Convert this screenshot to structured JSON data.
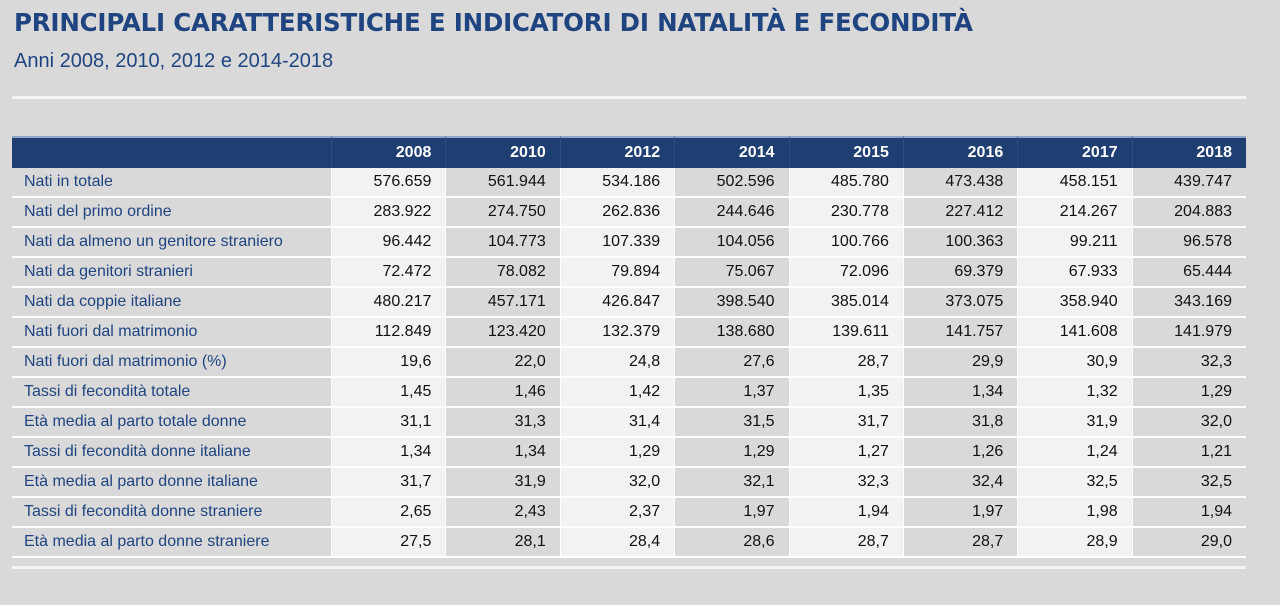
{
  "title": "PRINCIPALI CARATTERISTICHE E INDICATORI DI NATALITÀ E FECONDITÀ",
  "subtitle": "Anni 2008, 2010, 2012 e 2014-2018",
  "table": {
    "columns": [
      "",
      "2008",
      "2010",
      "2012",
      "2014",
      "2015",
      "2016",
      "2017",
      "2018"
    ],
    "rows": [
      {
        "label": "Nati in totale",
        "values": [
          "576.659",
          "561.944",
          "534.186",
          "502.596",
          "485.780",
          "473.438",
          "458.151",
          "439.747"
        ]
      },
      {
        "label": "Nati del primo ordine",
        "values": [
          "283.922",
          "274.750",
          "262.836",
          "244.646",
          "230.778",
          "227.412",
          "214.267",
          "204.883"
        ]
      },
      {
        "label": "Nati da almeno un genitore straniero",
        "values": [
          "96.442",
          "104.773",
          "107.339",
          "104.056",
          "100.766",
          "100.363",
          "99.211",
          "96.578"
        ]
      },
      {
        "label": "Nati da genitori stranieri",
        "values": [
          "72.472",
          "78.082",
          "79.894",
          "75.067",
          "72.096",
          "69.379",
          "67.933",
          "65.444"
        ]
      },
      {
        "label": "Nati da coppie italiane",
        "values": [
          "480.217",
          "457.171",
          "426.847",
          "398.540",
          "385.014",
          "373.075",
          "358.940",
          "343.169"
        ]
      },
      {
        "label": "Nati fuori dal matrimonio",
        "values": [
          "112.849",
          "123.420",
          "132.379",
          "138.680",
          "139.611",
          "141.757",
          "141.608",
          "141.979"
        ]
      },
      {
        "label": "Nati fuori dal matrimonio (%)",
        "values": [
          "19,6",
          "22,0",
          "24,8",
          "27,6",
          "28,7",
          "29,9",
          "30,9",
          "32,3"
        ]
      },
      {
        "label": "Tassi di fecondità totale",
        "values": [
          "1,45",
          "1,46",
          "1,42",
          "1,37",
          "1,35",
          "1,34",
          "1,32",
          "1,29"
        ]
      },
      {
        "label": "Età media al parto totale donne",
        "values": [
          "31,1",
          "31,3",
          "31,4",
          "31,5",
          "31,7",
          "31,8",
          "31,9",
          "32,0"
        ]
      },
      {
        "label": "Tassi di fecondità donne italiane",
        "values": [
          "1,34",
          "1,34",
          "1,29",
          "1,29",
          "1,27",
          "1,26",
          "1,24",
          "1,21"
        ]
      },
      {
        "label": "Età media al parto donne italiane",
        "values": [
          "31,7",
          "31,9",
          "32,0",
          "32,1",
          "32,3",
          "32,4",
          "32,5",
          "32,5"
        ]
      },
      {
        "label": "Tassi di fecondità donne straniere",
        "values": [
          "2,65",
          "2,43",
          "2,37",
          "1,97",
          "1,94",
          "1,97",
          "1,98",
          "1,94"
        ]
      },
      {
        "label": "Età media al parto donne straniere",
        "values": [
          "27,5",
          "28,1",
          "28,4",
          "28,6",
          "28,7",
          "28,7",
          "28,9",
          "29,0"
        ]
      }
    ]
  },
  "colors": {
    "title": "#1f4480",
    "header_bg": "#1f3f73",
    "page_bg": "#d9d9d9",
    "cell_light": "#f2f2f2"
  }
}
